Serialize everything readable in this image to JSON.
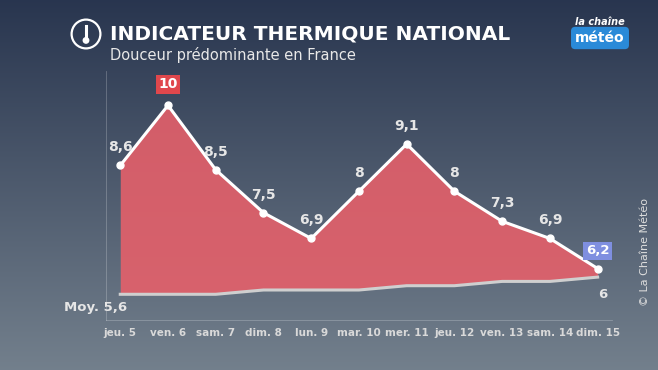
{
  "chart_data": {
    "type": "area",
    "title": "INDICATEUR THERMIQUE NATIONAL",
    "subtitle": "Douceur prédominante en France",
    "categories": [
      "jeu. 5",
      "ven. 6",
      "sam. 7",
      "dim. 8",
      "lun. 9",
      "mar. 10",
      "mer. 11",
      "jeu. 12",
      "ven. 13",
      "sam. 14",
      "dim. 15"
    ],
    "series": [
      {
        "values": [
          8.6,
          10,
          8.5,
          7.5,
          6.9,
          8,
          9.1,
          8,
          7.3,
          6.9,
          6.2
        ],
        "value_labels": [
          "8,6",
          "10",
          "8,5",
          "7,5",
          "6,9",
          "8",
          "9,1",
          "8",
          "7,3",
          "6,9",
          "6,2"
        ],
        "color": "#e8606a",
        "marker": "o"
      },
      {
        "values": [
          5.6,
          5.6,
          5.6,
          5.7,
          5.7,
          5.7,
          5.8,
          5.8,
          5.9,
          5.9,
          6.0
        ],
        "value_labels": [
          "Moy. 5,6",
          null,
          null,
          null,
          null,
          null,
          null,
          null,
          null,
          null,
          "6"
        ],
        "color": "#cfcfcf"
      }
    ],
    "ylim": [
      5.0,
      10.8
    ],
    "yticks": [],
    "grid": false,
    "data_labels": true,
    "tick_labels": "x",
    "logo": [
      "la chaîne",
      "météo"
    ],
    "credit": "© La Chaîne Météo"
  }
}
